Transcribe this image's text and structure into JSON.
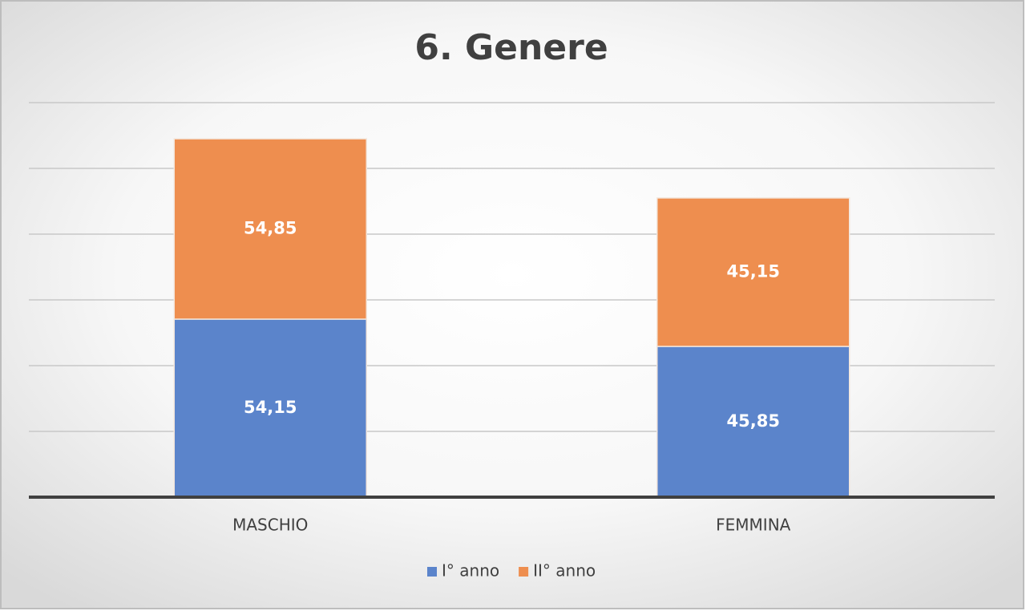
{
  "chart_data": {
    "type": "stacked_bar",
    "title": "6. Genere",
    "categories": [
      "MASCHIO",
      "FEMMINA"
    ],
    "series": [
      {
        "name": "I° anno",
        "color": "#5b84cb",
        "values": [
          54.15,
          45.85
        ],
        "value_labels": [
          "54,15",
          "45,85"
        ]
      },
      {
        "name": "II° anno",
        "color": "#ee8e4f",
        "values": [
          54.85,
          45.15
        ],
        "value_labels": [
          "54,85",
          "45,15"
        ]
      }
    ],
    "ylim": [
      0,
      120
    ],
    "yticks": [
      0,
      20,
      40,
      60,
      80,
      100,
      120
    ],
    "grid": true,
    "legend": "bottom"
  }
}
